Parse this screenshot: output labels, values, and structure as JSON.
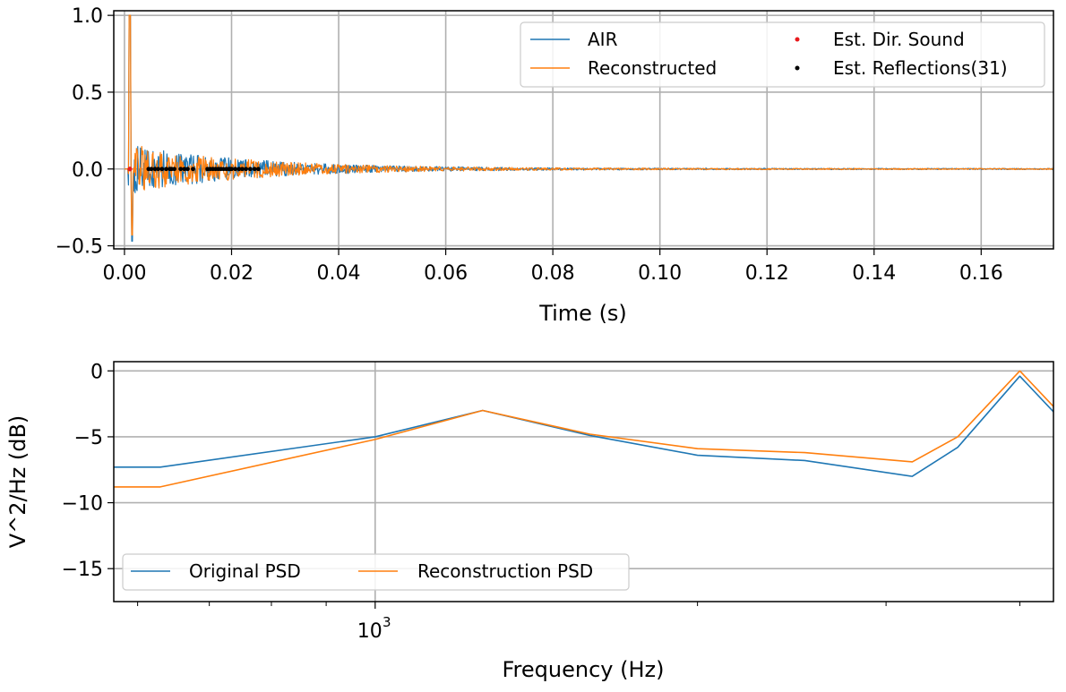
{
  "colors": {
    "blue": "#1f77b4",
    "orange": "#ff7f0e",
    "red": "#e8191c",
    "black": "#000000",
    "grid": "#b0b0b0"
  },
  "chart_data": [
    {
      "type": "line",
      "xlabel": "Time (s)",
      "ylabel": "",
      "xlim": [
        -0.002,
        0.1735
      ],
      "ylim": [
        -0.52,
        1.03
      ],
      "xticks": [
        0.0,
        0.02,
        0.04,
        0.06,
        0.08,
        0.1,
        0.12,
        0.14,
        0.16
      ],
      "xtick_labels": [
        "0.00",
        "0.02",
        "0.04",
        "0.06",
        "0.08",
        "0.10",
        "0.12",
        "0.14",
        "0.16"
      ],
      "yticks": [
        1.0,
        0.5,
        0.0,
        -0.5
      ],
      "ytick_labels": [
        "1.0",
        "0.5",
        "0.0",
        "−0.5"
      ],
      "grid": true,
      "legend_position": "top-right",
      "series": [
        {
          "name": "AIR",
          "kind": "line",
          "color": "#1f77b4",
          "envelope": {
            "peak_t": 0.001,
            "peak_v": 1.0,
            "min_v": -0.47,
            "decay_tau": 0.022
          }
        },
        {
          "name": "Reconstructed",
          "kind": "line",
          "color": "#ff7f0e",
          "envelope": {
            "peak_t": 0.001,
            "peak_v": 1.0,
            "min_v": -0.43,
            "decay_tau": 0.022
          }
        },
        {
          "name": "Est. Dir. Sound",
          "kind": "marker",
          "color": "#e8191c",
          "points": [
            [
              0.001,
              0.0
            ]
          ]
        },
        {
          "name": "Est. Reflections(31)",
          "kind": "marker",
          "color": "#000000",
          "x": [
            0.0045,
            0.005,
            0.0057,
            0.0063,
            0.007,
            0.0078,
            0.0085,
            0.0093,
            0.0105,
            0.0112,
            0.0118,
            0.0155,
            0.016,
            0.0165,
            0.017,
            0.0175,
            0.018,
            0.0185,
            0.019,
            0.0195,
            0.02,
            0.0207,
            0.0214,
            0.022,
            0.0227,
            0.0235,
            0.0243,
            0.025,
            0.0088,
            0.0128,
            0.0197
          ],
          "y": 0.0
        }
      ]
    },
    {
      "type": "line",
      "xlabel": "Frequency (Hz)",
      "ylabel": "V^2/Hz (dB)",
      "xscale": "log",
      "xlim": [
        570,
        4300
      ],
      "ylim": [
        -17.5,
        0.7
      ],
      "xticks_major": [
        1000
      ],
      "xtick_labels": [
        "10",
        "3"
      ],
      "xticks_minor": [
        600,
        700,
        800,
        900,
        2000,
        3000,
        4000
      ],
      "yticks": [
        0,
        -5,
        -10,
        -15
      ],
      "ytick_labels": [
        "0",
        "−5",
        "−10",
        "−15"
      ],
      "grid": true,
      "legend_position": "lower-left",
      "series": [
        {
          "name": "Original PSD",
          "color": "#1f77b4",
          "x": [
            570,
            630,
            1000,
            1260,
            1587,
            2000,
            2519,
            3174,
            3500,
            4000,
            4300
          ],
          "y": [
            -7.3,
            -7.3,
            -5.0,
            -3.0,
            -4.9,
            -6.4,
            -6.8,
            -8.0,
            -5.8,
            -0.4,
            -3.1
          ]
        },
        {
          "name": "Reconstruction PSD",
          "color": "#ff7f0e",
          "x": [
            570,
            630,
            1000,
            1260,
            1587,
            2000,
            2519,
            3174,
            3500,
            4000,
            4300
          ],
          "y": [
            -8.8,
            -8.8,
            -5.2,
            -3.0,
            -4.8,
            -5.9,
            -6.2,
            -6.9,
            -5.0,
            0.0,
            -2.7
          ]
        }
      ]
    }
  ]
}
